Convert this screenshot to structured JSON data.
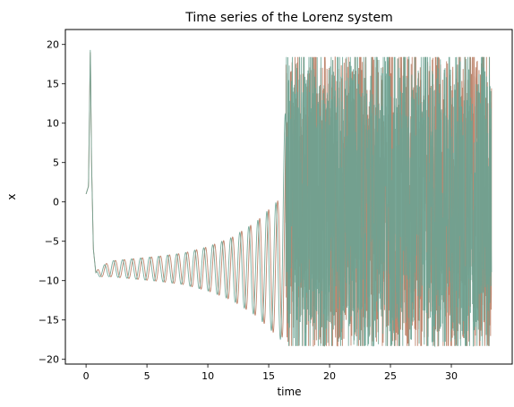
{
  "chart_data": {
    "type": "line",
    "title": "Time series of the Lorenz system",
    "xlabel": "time",
    "ylabel": "x",
    "xlim": [
      -1.7,
      35.0
    ],
    "ylim": [
      -20.6,
      21.9
    ],
    "xticks": [
      0,
      5,
      10,
      15,
      20,
      25,
      30
    ],
    "yticks": [
      -20,
      -15,
      -10,
      -5,
      0,
      5,
      10,
      15,
      20
    ],
    "grid": false,
    "legend": "none",
    "t_end": 33.3,
    "series": [
      {
        "color": "#b87a5f",
        "description_values": {
          "t": [
            0,
            0.2,
            0.35,
            0.45,
            0.6,
            0.8,
            1.0,
            2,
            4,
            6,
            8,
            10,
            12,
            14,
            15,
            16,
            16.5,
            17,
            20,
            25,
            30,
            33.3
          ],
          "x_center_or_level": [
            1,
            2,
            19.5,
            5,
            -6,
            -9,
            -9,
            -8.5,
            -8.5,
            -8.5,
            -8.5,
            -8.5,
            -8.5,
            -8.5,
            -8.5,
            -8.5,
            0,
            0,
            0,
            0,
            0,
            0
          ],
          "oscillation_amplitude": [
            0,
            0,
            0,
            0,
            0,
            0,
            0.5,
            1.0,
            1.3,
            1.6,
            2.0,
            2.8,
            4.0,
            6.0,
            7.5,
            9,
            16,
            17,
            17,
            17,
            17,
            17
          ]
        }
      },
      {
        "color": "#6aa392",
        "description_values": {
          "t": [
            0,
            0.2,
            0.35,
            0.45,
            0.6,
            0.8,
            1.0,
            2,
            4,
            6,
            8,
            10,
            12,
            14,
            15,
            16,
            16.5,
            17,
            20,
            25,
            30,
            33.3
          ],
          "x_center_or_level": [
            1,
            2,
            19.8,
            5,
            -6,
            -9,
            -9,
            -8.5,
            -8.5,
            -8.5,
            -8.5,
            -8.5,
            -8.5,
            -8.5,
            -8.5,
            -8.5,
            0,
            0,
            0,
            0,
            0,
            0
          ],
          "oscillation_amplitude": [
            0,
            0,
            0,
            0,
            0,
            0,
            0.5,
            1.0,
            1.3,
            1.6,
            2.0,
            2.8,
            4.0,
            6.0,
            7.5,
            9,
            16,
            17,
            17,
            17,
            17,
            17
          ]
        }
      }
    ]
  }
}
